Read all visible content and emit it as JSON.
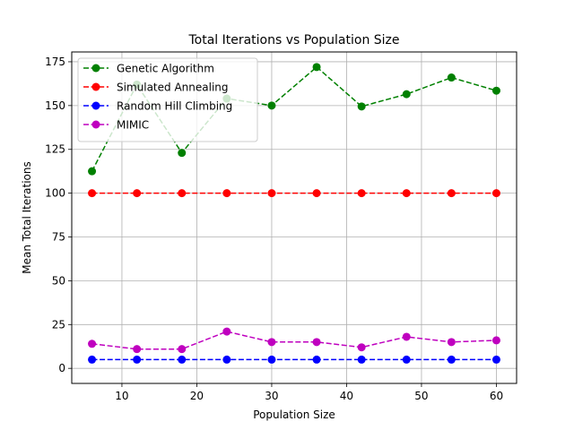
{
  "chart_data": {
    "type": "line",
    "title": "Total Iterations vs Population Size",
    "xlabel": "Population Size",
    "ylabel": "Mean Total Iterations",
    "xlim": [
      3.3,
      62.7
    ],
    "ylim": [
      -8.6,
      180.6
    ],
    "xticks": [
      10,
      20,
      30,
      40,
      50,
      60
    ],
    "yticks": [
      0,
      25,
      50,
      75,
      100,
      125,
      150,
      175
    ],
    "grid": true,
    "legend_position": "upper-left",
    "x": [
      6,
      12,
      18,
      24,
      30,
      36,
      42,
      48,
      54,
      60
    ],
    "series": [
      {
        "name": "Genetic Algorithm",
        "color": "#008000",
        "values": [
          112.5,
          162,
          123,
          154,
          150,
          172,
          149.5,
          156.5,
          166,
          158.5
        ]
      },
      {
        "name": "Simulated Annealing",
        "color": "#ff0000",
        "values": [
          100,
          100,
          100,
          100,
          100,
          100,
          100,
          100,
          100,
          100
        ]
      },
      {
        "name": "Random Hill Climbing",
        "color": "#0000ff",
        "values": [
          5,
          5,
          5,
          5,
          5,
          5,
          5,
          5,
          5,
          5
        ]
      },
      {
        "name": "MIMIC",
        "color": "#bf00bf",
        "values": [
          14,
          11,
          11,
          21,
          15,
          15,
          12,
          18,
          15,
          16
        ]
      }
    ]
  }
}
